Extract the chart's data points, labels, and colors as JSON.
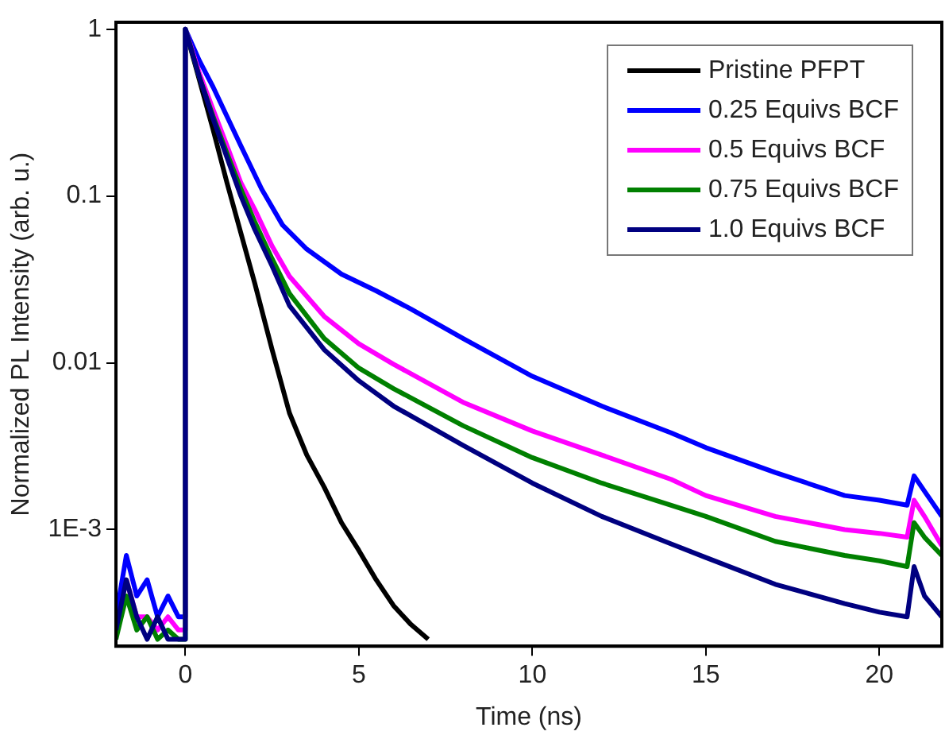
{
  "chart_data": {
    "type": "line",
    "xlabel": "Time (ns)",
    "ylabel": "Normalized PL Intensity (arb. u.)",
    "log": "y",
    "xlim": [
      -2,
      21.8
    ],
    "xticks": [
      0,
      5,
      10,
      15,
      20
    ],
    "ylim": [
      0.0002,
      1.1
    ],
    "yticks": [
      {
        "value": 0.001,
        "label": "1E-3"
      },
      0.01,
      0.1,
      1
    ],
    "grid": false,
    "legend": "top right",
    "marker": "none",
    "line_style": "solid",
    "series": [
      {
        "name": "Pristine PFPT",
        "color": "#000000",
        "x": [
          0,
          0.4,
          0.8,
          1.2,
          1.6,
          2,
          2.5,
          3,
          3.5,
          4,
          4.5,
          5,
          5.5,
          6,
          6.5,
          7
        ],
        "values": [
          1,
          0.5,
          0.25,
          0.12,
          0.06,
          0.03,
          0.012,
          0.005,
          0.0028,
          0.0018,
          0.0011,
          0.00075,
          0.0005,
          0.00035,
          0.00027,
          0.00022
        ]
      },
      {
        "name": "0.25 Equivs BCF",
        "color": "#0000ff",
        "x": [
          -2,
          -1.7,
          -1.4,
          -1.1,
          -0.8,
          -0.5,
          -0.2,
          -0.02,
          0,
          0.4,
          0.8,
          1.2,
          1.6,
          2.2,
          2.8,
          3.5,
          4.5,
          5.5,
          6.5,
          8,
          10,
          12,
          14,
          15,
          17,
          19,
          20,
          20.8,
          21,
          21.3,
          21.8
        ],
        "values": [
          0.0003,
          0.0007,
          0.0004,
          0.0005,
          0.0003,
          0.0004,
          0.0003,
          0.0003,
          1,
          0.65,
          0.45,
          0.3,
          0.2,
          0.11,
          0.067,
          0.048,
          0.034,
          0.027,
          0.021,
          0.014,
          0.0083,
          0.0055,
          0.0038,
          0.0031,
          0.0022,
          0.0016,
          0.0015,
          0.0014,
          0.0021,
          0.0017,
          0.0012
        ]
      },
      {
        "name": "0.5 Equivs BCF",
        "color": "#ff00ff",
        "x": [
          -1.7,
          -1.4,
          -1.1,
          -0.8,
          -0.5,
          -0.2,
          -0.02,
          0,
          0.4,
          0.8,
          1.2,
          1.6,
          2,
          2.5,
          3,
          4,
          5,
          6,
          8,
          10,
          12,
          14,
          15,
          17,
          19,
          20,
          20.8,
          21,
          21.3,
          21.8
        ],
        "values": [
          0.0005,
          0.0003,
          0.0003,
          0.00025,
          0.0003,
          0.00025,
          0.00025,
          1,
          0.55,
          0.33,
          0.2,
          0.12,
          0.083,
          0.05,
          0.033,
          0.019,
          0.013,
          0.0098,
          0.0058,
          0.0039,
          0.0028,
          0.002,
          0.0016,
          0.0012,
          0.001,
          0.00095,
          0.0009,
          0.0015,
          0.0012,
          0.0008
        ]
      },
      {
        "name": "0.75 Equivs BCF",
        "color": "#008000",
        "x": [
          -2,
          -1.7,
          -1.4,
          -1.1,
          -0.8,
          -0.5,
          -0.2,
          -0.02,
          0,
          0.4,
          0.8,
          1.2,
          1.6,
          2,
          2.5,
          3,
          4,
          5,
          6,
          8,
          10,
          12,
          14,
          15,
          17,
          19,
          20,
          20.8,
          21,
          21.3,
          21.8
        ],
        "values": [
          0.00022,
          0.0004,
          0.00025,
          0.0003,
          0.00022,
          0.00025,
          0.00022,
          0.00022,
          1,
          0.52,
          0.3,
          0.18,
          0.11,
          0.07,
          0.042,
          0.026,
          0.014,
          0.0093,
          0.007,
          0.0042,
          0.0027,
          0.0019,
          0.0014,
          0.0012,
          0.00085,
          0.0007,
          0.00065,
          0.0006,
          0.0011,
          0.0009,
          0.0007
        ]
      },
      {
        "name": "1.0 Equivs BCF",
        "color": "#000080",
        "x": [
          -2,
          -1.7,
          -1.4,
          -1.1,
          -0.8,
          -0.5,
          -0.2,
          -0.02,
          0,
          0.4,
          0.8,
          1.2,
          1.6,
          2,
          2.5,
          3,
          4,
          5,
          6,
          8,
          10,
          12,
          14,
          15,
          17,
          19,
          20,
          20.8,
          21,
          21.3,
          21.8
        ],
        "values": [
          0.00025,
          0.0005,
          0.0003,
          0.00022,
          0.0003,
          0.00022,
          0.00022,
          0.00022,
          1,
          0.52,
          0.29,
          0.17,
          0.1,
          0.063,
          0.038,
          0.022,
          0.012,
          0.0078,
          0.0055,
          0.0032,
          0.0019,
          0.0012,
          0.00082,
          0.00068,
          0.00047,
          0.00036,
          0.00032,
          0.0003,
          0.0006,
          0.0004,
          0.0003
        ]
      }
    ]
  }
}
